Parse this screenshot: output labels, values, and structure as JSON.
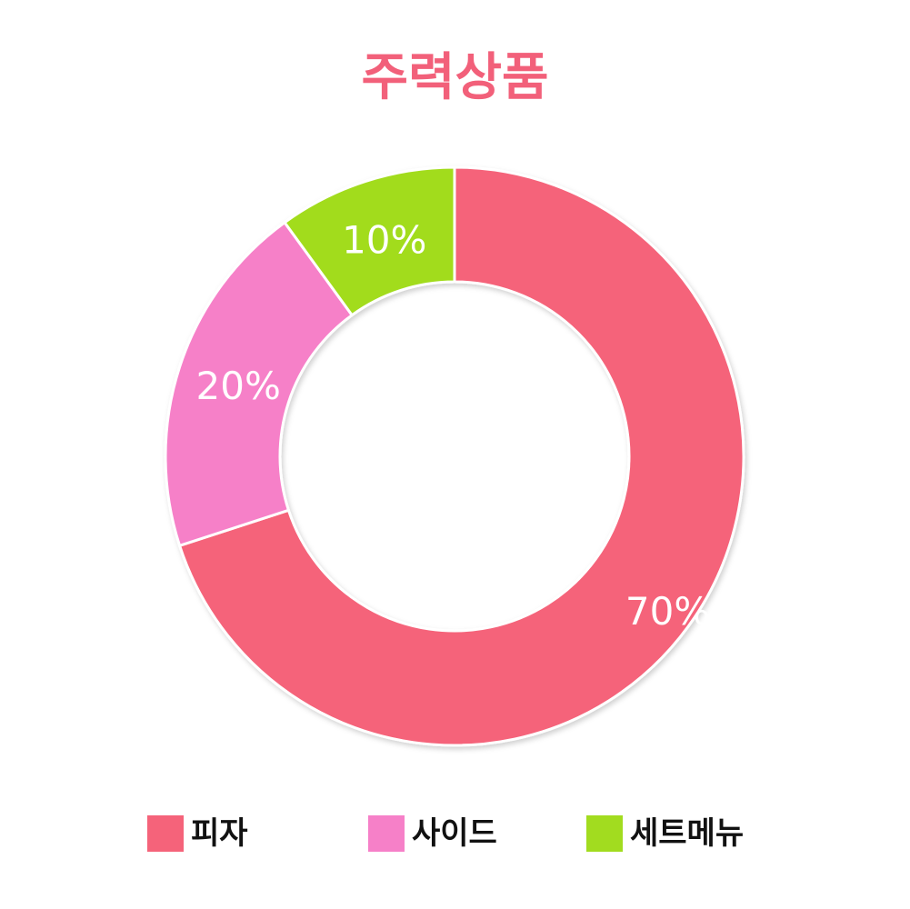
{
  "chart_data": {
    "type": "pie",
    "title": "주력상품",
    "title_color": "#f2607a",
    "donut": true,
    "start_angle": "12 o'clock, clockwise",
    "slices": [
      {
        "name": "피자",
        "value": 70,
        "label": "70%",
        "color": "#f5637a"
      },
      {
        "name": "사이드",
        "value": 20,
        "label": "20%",
        "color": "#f680c8"
      },
      {
        "name": "세트메뉴",
        "value": 10,
        "label": "10%",
        "color": "#a2dc1f"
      }
    ],
    "legend": {
      "placement": "bottom",
      "items": [
        "피자",
        "사이드",
        "세트메뉴"
      ]
    }
  }
}
